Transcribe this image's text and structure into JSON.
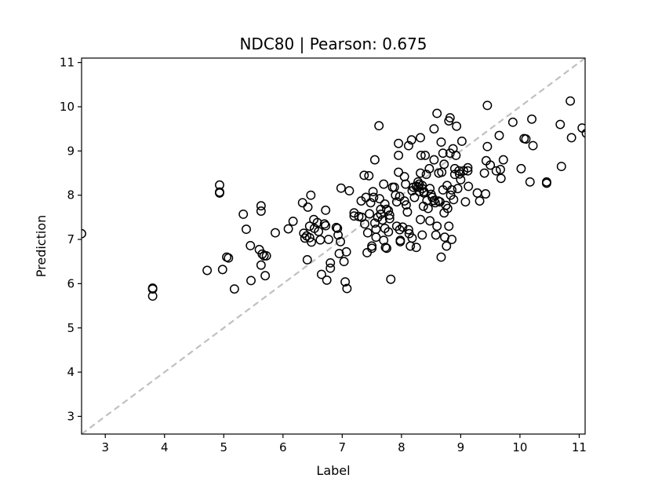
{
  "chart_data": {
    "type": "scatter",
    "title": "NDC80  |  Pearson: 0.675",
    "xlabel": "Label",
    "ylabel": "Prediction",
    "xlim": [
      2.6,
      11.1
    ],
    "ylim": [
      2.6,
      11.1
    ],
    "xticks": [
      3,
      4,
      5,
      6,
      7,
      8,
      9,
      10,
      11
    ],
    "yticks": [
      3,
      4,
      5,
      6,
      7,
      8,
      9,
      10,
      11
    ],
    "grid": false,
    "reference_line": {
      "style": "dashed",
      "color": "#c0c0c0",
      "from": [
        2.6,
        2.6
      ],
      "to": [
        11.1,
        11.1
      ]
    },
    "marker": {
      "shape": "open-circle",
      "edge_color": "#000000"
    },
    "series": [
      {
        "points": [
          [
            2.6,
            7.13
          ],
          [
            3.8,
            5.9
          ],
          [
            3.8,
            5.88
          ],
          [
            3.8,
            5.72
          ],
          [
            4.72,
            6.3
          ],
          [
            4.93,
            8.23
          ],
          [
            4.93,
            8.07
          ],
          [
            4.93,
            8.05
          ],
          [
            4.98,
            6.32
          ],
          [
            5.05,
            6.6
          ],
          [
            5.08,
            6.58
          ],
          [
            5.18,
            5.88
          ],
          [
            5.33,
            7.57
          ],
          [
            5.38,
            7.23
          ],
          [
            5.45,
            6.86
          ],
          [
            5.46,
            6.07
          ],
          [
            5.63,
            7.76
          ],
          [
            5.63,
            7.64
          ],
          [
            5.63,
            6.42
          ],
          [
            5.6,
            6.77
          ],
          [
            5.65,
            6.67
          ],
          [
            5.68,
            6.63
          ],
          [
            5.7,
            6.18
          ],
          [
            5.72,
            6.63
          ],
          [
            5.87,
            7.15
          ],
          [
            6.09,
            7.24
          ],
          [
            6.17,
            7.41
          ],
          [
            6.33,
            7.83
          ],
          [
            6.35,
            7.14
          ],
          [
            6.37,
            7.03
          ],
          [
            6.4,
            7.08
          ],
          [
            6.42,
            7.73
          ],
          [
            6.41,
            6.54
          ],
          [
            6.47,
            8.0
          ],
          [
            6.45,
            7.3
          ],
          [
            6.45,
            7.04
          ],
          [
            6.48,
            6.94
          ],
          [
            6.52,
            7.45
          ],
          [
            6.53,
            7.25
          ],
          [
            6.58,
            7.38
          ],
          [
            6.6,
            7.18
          ],
          [
            6.63,
            6.99
          ],
          [
            6.65,
            6.21
          ],
          [
            6.7,
            7.35
          ],
          [
            6.72,
            7.66
          ],
          [
            6.72,
            7.31
          ],
          [
            6.74,
            6.08
          ],
          [
            6.77,
            7.0
          ],
          [
            6.8,
            6.47
          ],
          [
            6.8,
            6.35
          ],
          [
            6.9,
            7.27
          ],
          [
            6.92,
            7.25
          ],
          [
            6.93,
            7.1
          ],
          [
            6.95,
            6.68
          ],
          [
            6.97,
            6.95
          ],
          [
            6.98,
            8.16
          ],
          [
            7.03,
            6.5
          ],
          [
            7.05,
            6.04
          ],
          [
            7.07,
            6.72
          ],
          [
            7.08,
            5.89
          ],
          [
            7.12,
            8.1
          ],
          [
            7.2,
            7.6
          ],
          [
            7.2,
            7.53
          ],
          [
            7.28,
            7.52
          ],
          [
            7.32,
            7.87
          ],
          [
            7.33,
            7.5
          ],
          [
            7.37,
            8.45
          ],
          [
            7.38,
            7.35
          ],
          [
            7.4,
            7.95
          ],
          [
            7.42,
            6.7
          ],
          [
            7.43,
            7.15
          ],
          [
            7.45,
            8.44
          ],
          [
            7.46,
            7.58
          ],
          [
            7.48,
            7.83
          ],
          [
            7.5,
            6.85
          ],
          [
            7.5,
            6.8
          ],
          [
            7.52,
            8.08
          ],
          [
            7.53,
            7.95
          ],
          [
            7.55,
            8.8
          ],
          [
            7.55,
            7.37
          ],
          [
            7.57,
            7.23
          ],
          [
            7.57,
            7.05
          ],
          [
            7.6,
            7.5
          ],
          [
            7.62,
            9.57
          ],
          [
            7.63,
            7.92
          ],
          [
            7.65,
            7.68
          ],
          [
            7.65,
            7.57
          ],
          [
            7.68,
            7.44
          ],
          [
            7.7,
            8.25
          ],
          [
            7.7,
            6.98
          ],
          [
            7.72,
            7.8
          ],
          [
            7.72,
            7.25
          ],
          [
            7.73,
            6.82
          ],
          [
            7.75,
            7.68
          ],
          [
            7.75,
            6.8
          ],
          [
            7.78,
            7.65
          ],
          [
            7.78,
            7.17
          ],
          [
            7.8,
            7.55
          ],
          [
            7.8,
            7.47
          ],
          [
            7.82,
            6.1
          ],
          [
            7.85,
            8.18
          ],
          [
            7.88,
            8.18
          ],
          [
            7.9,
            8.0
          ],
          [
            7.92,
            7.85
          ],
          [
            7.92,
            7.3
          ],
          [
            7.95,
            9.17
          ],
          [
            7.95,
            8.9
          ],
          [
            7.95,
            8.52
          ],
          [
            7.97,
            7.97
          ],
          [
            7.97,
            7.22
          ],
          [
            7.98,
            6.98
          ],
          [
            7.98,
            6.95
          ],
          [
            8.02,
            7.28
          ],
          [
            8.05,
            8.42
          ],
          [
            8.05,
            7.87
          ],
          [
            8.07,
            8.25
          ],
          [
            8.08,
            7.78
          ],
          [
            8.1,
            7.62
          ],
          [
            8.12,
            9.12
          ],
          [
            8.12,
            7.22
          ],
          [
            8.13,
            7.13
          ],
          [
            8.15,
            6.85
          ],
          [
            8.17,
            9.25
          ],
          [
            8.18,
            8.1
          ],
          [
            8.18,
            7.03
          ],
          [
            8.2,
            8.18
          ],
          [
            8.22,
            7.95
          ],
          [
            8.25,
            8.2
          ],
          [
            8.25,
            6.82
          ],
          [
            8.28,
            8.3
          ],
          [
            8.28,
            8.18
          ],
          [
            8.3,
            8.25
          ],
          [
            8.3,
            8.08
          ],
          [
            8.32,
            9.3
          ],
          [
            8.32,
            8.5
          ],
          [
            8.32,
            7.45
          ],
          [
            8.33,
            8.9
          ],
          [
            8.35,
            8.22
          ],
          [
            8.35,
            8.15
          ],
          [
            8.35,
            7.1
          ],
          [
            8.37,
            7.75
          ],
          [
            8.38,
            8.08
          ],
          [
            8.38,
            8.05
          ],
          [
            8.4,
            8.9
          ],
          [
            8.42,
            8.47
          ],
          [
            8.43,
            7.88
          ],
          [
            8.45,
            7.7
          ],
          [
            8.47,
            8.6
          ],
          [
            8.48,
            8.15
          ],
          [
            8.48,
            7.42
          ],
          [
            8.5,
            8.02
          ],
          [
            8.52,
            7.95
          ],
          [
            8.55,
            9.5
          ],
          [
            8.55,
            8.8
          ],
          [
            8.55,
            7.88
          ],
          [
            8.57,
            7.83
          ],
          [
            8.58,
            7.1
          ],
          [
            8.6,
            9.85
          ],
          [
            8.6,
            7.3
          ],
          [
            8.62,
            7.87
          ],
          [
            8.63,
            8.5
          ],
          [
            8.65,
            7.85
          ],
          [
            8.67,
            9.2
          ],
          [
            8.67,
            6.6
          ],
          [
            8.68,
            8.52
          ],
          [
            8.7,
            8.95
          ],
          [
            8.7,
            8.12
          ],
          [
            8.72,
            8.7
          ],
          [
            8.72,
            7.6
          ],
          [
            8.73,
            7.05
          ],
          [
            8.75,
            7.77
          ],
          [
            8.76,
            6.85
          ],
          [
            8.77,
            8.22
          ],
          [
            8.78,
            7.7
          ],
          [
            8.8,
            9.68
          ],
          [
            8.8,
            7.3
          ],
          [
            8.82,
            9.75
          ],
          [
            8.82,
            8.95
          ],
          [
            8.83,
            8.0
          ],
          [
            8.85,
            8.12
          ],
          [
            8.85,
            7.0
          ],
          [
            8.87,
            9.05
          ],
          [
            8.88,
            7.9
          ],
          [
            8.9,
            8.6
          ],
          [
            8.9,
            8.47
          ],
          [
            8.92,
            8.9
          ],
          [
            8.93,
            9.56
          ],
          [
            8.95,
            8.15
          ],
          [
            8.97,
            8.55
          ],
          [
            8.98,
            8.48
          ],
          [
            9.0,
            8.35
          ],
          [
            9.02,
            9.22
          ],
          [
            9.05,
            8.55
          ],
          [
            9.08,
            7.85
          ],
          [
            9.12,
            8.62
          ],
          [
            9.12,
            8.55
          ],
          [
            9.13,
            8.2
          ],
          [
            9.28,
            8.05
          ],
          [
            9.32,
            7.87
          ],
          [
            9.4,
            8.5
          ],
          [
            9.42,
            8.03
          ],
          [
            9.43,
            8.78
          ],
          [
            9.45,
            10.03
          ],
          [
            9.45,
            9.1
          ],
          [
            9.5,
            8.68
          ],
          [
            9.6,
            8.55
          ],
          [
            9.65,
            9.35
          ],
          [
            9.67,
            8.58
          ],
          [
            9.68,
            8.38
          ],
          [
            9.72,
            8.8
          ],
          [
            9.88,
            9.65
          ],
          [
            10.02,
            8.6
          ],
          [
            10.07,
            9.28
          ],
          [
            10.1,
            9.27
          ],
          [
            10.17,
            8.3
          ],
          [
            10.2,
            9.72
          ],
          [
            10.22,
            9.12
          ],
          [
            10.45,
            8.3
          ],
          [
            10.45,
            8.27
          ],
          [
            10.68,
            9.6
          ],
          [
            10.7,
            8.65
          ],
          [
            10.85,
            10.13
          ],
          [
            10.87,
            9.3
          ],
          [
            11.05,
            9.52
          ],
          [
            11.12,
            9.4
          ]
        ]
      }
    ]
  }
}
